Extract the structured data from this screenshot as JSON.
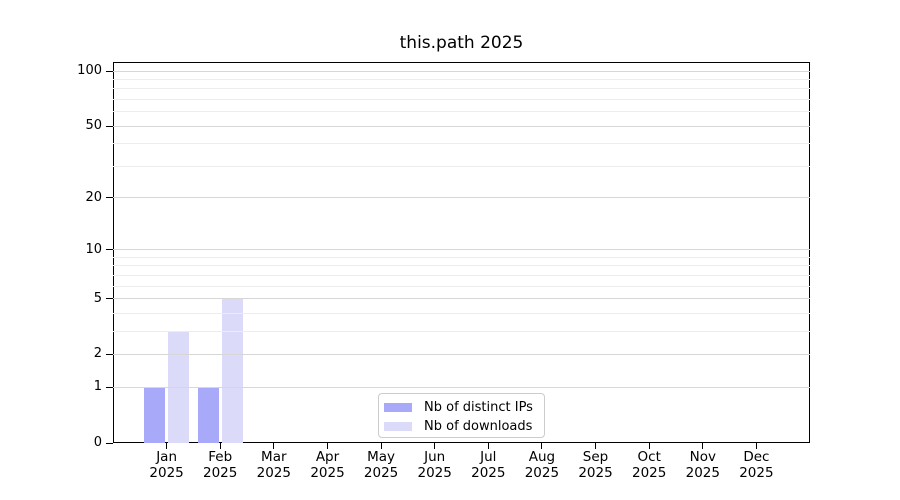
{
  "window": {
    "background": "#ffffff"
  },
  "colors": {
    "bar_distinct_ips": "#a9a9f9",
    "bar_downloads": "#dbdbf9",
    "grid_major": "#d7d7d7",
    "grid_minor": "#ededed",
    "axis": "#000000",
    "legend_border": "#cccccc",
    "text": "#000000"
  },
  "chart_data": {
    "type": "bar",
    "title": "this.path 2025",
    "categories": [
      "Jan 2025",
      "Feb 2025",
      "Mar 2025",
      "Apr 2025",
      "May 2025",
      "Jun 2025",
      "Jul 2025",
      "Aug 2025",
      "Sep 2025",
      "Oct 2025",
      "Nov 2025",
      "Dec 2025"
    ],
    "series": [
      {
        "name": "Nb of distinct IPs",
        "color": "#a9a9f9",
        "values": [
          1,
          1,
          0,
          0,
          0,
          0,
          0,
          0,
          0,
          0,
          0,
          0
        ]
      },
      {
        "name": "Nb of downloads",
        "color": "#dbdbf9",
        "values": [
          3,
          5,
          0,
          0,
          0,
          0,
          0,
          0,
          0,
          0,
          0,
          0
        ]
      }
    ],
    "xlabel": "",
    "ylabel": "",
    "yscale": "log1p",
    "ylim": [
      0,
      100
    ],
    "yticks": [
      0,
      1,
      2,
      5,
      10,
      20,
      50,
      100
    ],
    "minor_yticks": [
      3,
      4,
      6,
      7,
      8,
      9,
      30,
      40,
      60,
      70,
      80,
      90
    ],
    "grid": "horizontal",
    "legend_position": "bottom-center"
  }
}
